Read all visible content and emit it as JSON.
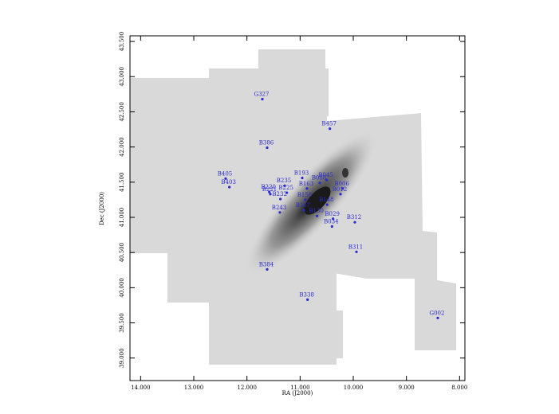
{
  "chart_data": {
    "type": "scatter",
    "xlabel": "RA (J2000)",
    "ylabel": "Dec (J2000)",
    "color": "#2a2ad0",
    "xlim": [
      14.2,
      7.9
    ],
    "ylim": [
      38.68,
      43.58
    ],
    "xticks": [
      {
        "value": 14,
        "label": "14.000"
      },
      {
        "value": 13,
        "label": "13.000"
      },
      {
        "value": 12,
        "label": "12.000"
      },
      {
        "value": 11,
        "label": "11.000"
      },
      {
        "value": 10,
        "label": "10.000"
      },
      {
        "value": 9,
        "label": "9.000"
      },
      {
        "value": 8,
        "label": "8.000"
      }
    ],
    "yticks": [
      {
        "value": 43.5,
        "label": "43.500"
      },
      {
        "value": 43,
        "label": "43.000"
      },
      {
        "value": 42.5,
        "label": "42.500"
      },
      {
        "value": 42,
        "label": "42.000"
      },
      {
        "value": 41.5,
        "label": "41.500"
      },
      {
        "value": 41,
        "label": "41.000"
      },
      {
        "value": 40.5,
        "label": "40.500"
      },
      {
        "value": 40,
        "label": "40.000"
      },
      {
        "value": 39.5,
        "label": "39.500"
      },
      {
        "value": 39,
        "label": "39.000"
      }
    ],
    "point_labels": [
      "G327",
      "B457",
      "B386",
      "B193",
      "B045",
      "B088",
      "B405",
      "B403",
      "B235",
      "B163",
      "B006",
      "B012",
      "B225",
      "B220",
      "B221",
      "B232",
      "B148",
      "B158",
      "B243",
      "B167",
      "B130",
      "B029",
      "B034",
      "B312",
      "B311",
      "B384",
      "B338",
      "G002"
    ],
    "x": [
      11.71,
      10.44,
      11.62,
      10.96,
      10.5,
      10.63,
      12.4,
      12.33,
      11.29,
      10.87,
      10.2,
      10.24,
      11.25,
      11.58,
      11.56,
      11.37,
      10.49,
      10.9,
      11.38,
      10.93,
      10.68,
      10.38,
      10.4,
      9.97,
      9.94,
      11.62,
      10.86,
      8.41
    ],
    "values": [
      42.68,
      42.26,
      41.99,
      41.56,
      41.53,
      41.49,
      41.55,
      41.43,
      41.45,
      41.41,
      41.41,
      41.33,
      41.35,
      41.36,
      41.33,
      41.26,
      41.18,
      41.25,
      41.07,
      41.1,
      41.02,
      40.98,
      40.87,
      40.93,
      40.51,
      40.26,
      39.83,
      39.57
    ]
  }
}
